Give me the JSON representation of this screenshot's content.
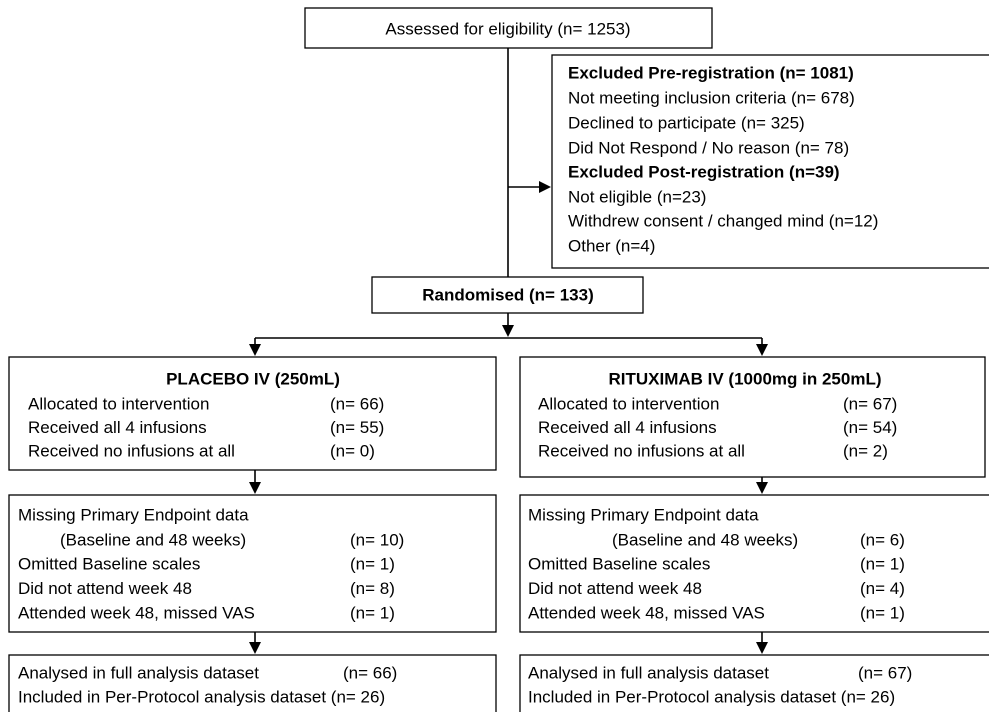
{
  "assessed": "Assessed for eligibility (n= 1253)",
  "excluded": [
    {
      "heading": "Excluded Pre-registration (n= 1081)",
      "items": [
        "Not meeting inclusion criteria (n= 678)",
        "Declined to participate (n= 325)",
        "Did Not Respond / No reason (n= 78)"
      ]
    },
    {
      "heading": "Excluded Post-registration (n=39)",
      "items": [
        "Not eligible (n=23)",
        "Withdrew consent / changed mind (n=12)",
        "Other (n=4)"
      ]
    }
  ],
  "randomised": "Randomised (n= 133)",
  "arms": [
    {
      "title": "PLACEBO IV (250mL)",
      "allocation": [
        {
          "label": "Allocated to intervention",
          "n": "(n= 66)"
        },
        {
          "label": "Received all 4 infusions",
          "n": "(n= 55)"
        },
        {
          "label": "Received no infusions at all",
          "n": "(n= 0)"
        }
      ],
      "missing": {
        "heading": "Missing Primary Endpoint data",
        "subheading": "(Baseline and 48 weeks)",
        "subheading_n": "(n= 10)",
        "rows": [
          {
            "label": "Omitted Baseline scales",
            "n": "(n= 1)"
          },
          {
            "label": "Did not attend week 48",
            "n": "(n= 8)"
          },
          {
            "label": "Attended week 48, missed VAS",
            "n": "(n= 1)"
          }
        ]
      },
      "analysis": {
        "label": "Analysed in full analysis dataset",
        "n": "(n= 66)",
        "per_protocol": "Included in Per-Protocol analysis dataset (n= 26)"
      }
    },
    {
      "title": "RITUXIMAB IV (1000mg in 250mL)",
      "allocation": [
        {
          "label": "Allocated to intervention",
          "n": "(n= 67)"
        },
        {
          "label": "Received all 4 infusions",
          "n": "(n= 54)"
        },
        {
          "label": "Received no infusions at all",
          "n": "(n= 2)"
        }
      ],
      "missing": {
        "heading": "Missing Primary Endpoint data",
        "subheading": "(Baseline and 48 weeks)",
        "subheading_n": "(n= 6)",
        "rows": [
          {
            "label": "Omitted Baseline scales",
            "n": "(n= 1)"
          },
          {
            "label": "Did not attend week 48",
            "n": "(n= 4)"
          },
          {
            "label": "Attended week 48, missed VAS",
            "n": "(n= 1)"
          }
        ]
      },
      "analysis": {
        "label": "Analysed in full analysis dataset",
        "n": "(n= 67)",
        "per_protocol": "Included in Per-Protocol analysis dataset (n= 26)"
      }
    }
  ]
}
